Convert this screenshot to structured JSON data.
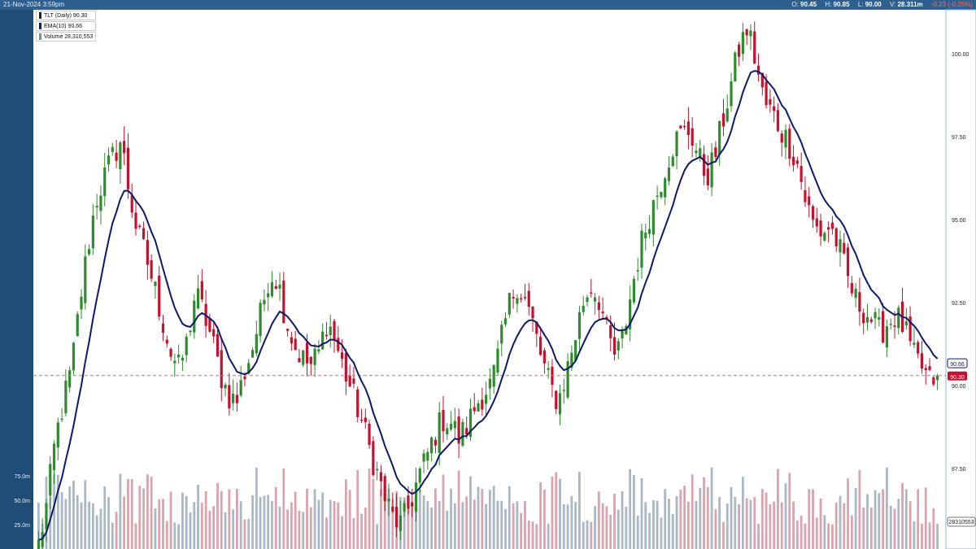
{
  "topbar": {
    "date": "21-Nov-2024 3:59pm",
    "open_label": "O:",
    "open": "90.45",
    "high_label": "H:",
    "high": "90.85",
    "low_label": "L:",
    "low": "90.00",
    "vol_label": "V:",
    "vol": "28.311m",
    "change": "-0.23 (-0.25%)"
  },
  "legend": {
    "price": "TLT (Daily) 90.30",
    "ema": "EMA(10) 90.66",
    "volume": "Volume 28,310,553"
  },
  "colors": {
    "up": "#2e8b2e",
    "down": "#c8102e",
    "ema": "#0d1a6b",
    "vol_up": "#aab8c6",
    "vol_down": "#d9a4ae",
    "frame": "#1f4d78"
  },
  "chart_data": {
    "type": "candlestick",
    "y_ticks": [
      "100.00",
      "97.50",
      "95.00",
      "92.50",
      "90.00",
      "87.50"
    ],
    "y_tick_values": [
      100,
      97.5,
      95,
      92.5,
      90,
      87.5
    ],
    "ylim": [
      85.0,
      100.9
    ],
    "volume_ticks": [
      "75.0m",
      "50.0m",
      "25.0m"
    ],
    "volume_tick_values": [
      75,
      50,
      25
    ],
    "volume_max": 150,
    "last_price": 90.3,
    "last_price_label": "90.30",
    "last_ema_label": "90.66",
    "last_volume_label": "28310553",
    "path": [
      85.2,
      86.4,
      88.3,
      89.5,
      90.5,
      92.5,
      94.2,
      95.6,
      96.3,
      96.9,
      97.4,
      95.8,
      94.6,
      93.9,
      93.0,
      92.0,
      91.0,
      90.5,
      91.3,
      92.8,
      92.2,
      91.4,
      90.4,
      89.7,
      89.5,
      90.4,
      91.2,
      92.2,
      93.4,
      93.2,
      92.0,
      91.2,
      90.8,
      90.6,
      91.0,
      92.0,
      91.3,
      90.5,
      89.8,
      89.1,
      88.2,
      87.4,
      86.6,
      86.0,
      85.8,
      86.4,
      87.2,
      87.8,
      88.5,
      89.0,
      88.9,
      88.4,
      88.8,
      89.4,
      89.8,
      90.1,
      91.2,
      92.4,
      93.1,
      92.6,
      91.8,
      90.8,
      90.0,
      89.5,
      90.4,
      91.4,
      92.5,
      93.0,
      92.6,
      91.5,
      90.8,
      91.6,
      93.0,
      94.2,
      95.1,
      95.8,
      96.6,
      97.3,
      97.6,
      97.7,
      96.9,
      96.3,
      96.9,
      98.0,
      99.1,
      100.2,
      100.8,
      99.7,
      98.5,
      98.2,
      97.7,
      97.3,
      96.7,
      95.6,
      94.8,
      94.6,
      94.8,
      94.2,
      93.3,
      92.6,
      92.3,
      92.0,
      91.6,
      91.9,
      92.1,
      91.7,
      90.9,
      90.6,
      90.1,
      90.3
    ],
    "notes": "Daily OHLC candles (green up / red down) with EMA(10) overlay and volume histogram; dashed line marks last price."
  }
}
